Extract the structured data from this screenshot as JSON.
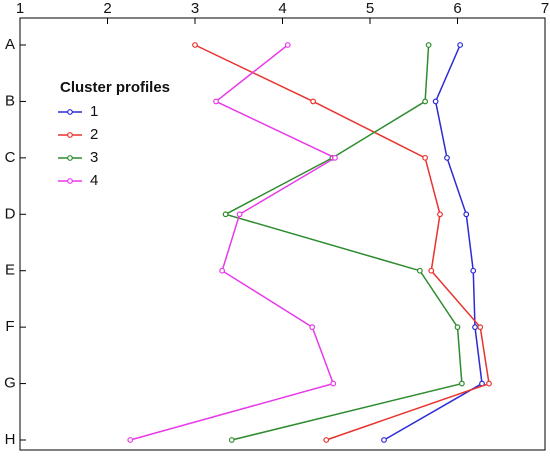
{
  "chart_data": {
    "type": "line",
    "legend_title": "Cluster profiles",
    "categories": [
      "A",
      "B",
      "C",
      "D",
      "E",
      "F",
      "G",
      "H"
    ],
    "series": [
      {
        "name": "1",
        "color": "#2b2bd6",
        "values": [
          6.03,
          5.75,
          5.88,
          6.1,
          6.18,
          6.2,
          6.28,
          5.16
        ]
      },
      {
        "name": "2",
        "color": "#e8332e",
        "values": [
          3.0,
          4.35,
          5.63,
          5.8,
          5.7,
          6.26,
          6.36,
          4.5
        ]
      },
      {
        "name": "3",
        "color": "#2e8b2e",
        "values": [
          5.67,
          5.63,
          4.57,
          3.35,
          5.57,
          6.0,
          6.05,
          3.42
        ]
      },
      {
        "name": "4",
        "color": "#e83ae8",
        "values": [
          4.06,
          3.24,
          4.6,
          3.51,
          3.31,
          4.34,
          4.58,
          2.26
        ]
      }
    ],
    "xlim": [
      1,
      7
    ],
    "xticks": [
      1,
      2,
      3,
      4,
      5,
      6,
      7
    ],
    "legend_position": "upper left"
  }
}
